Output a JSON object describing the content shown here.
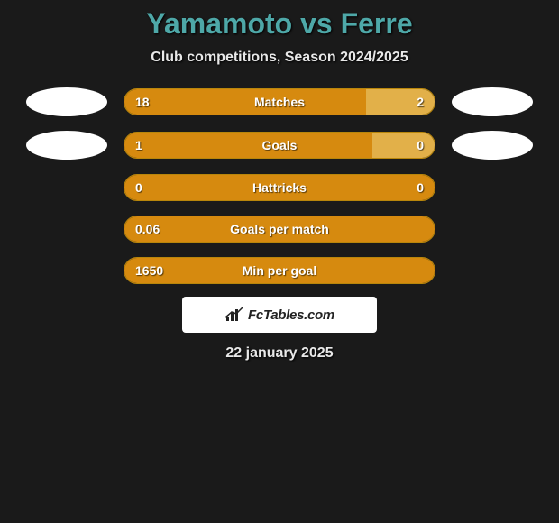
{
  "header": {
    "title": "Yamamoto vs Ferre",
    "subtitle": "Club competitions, Season 2024/2025"
  },
  "stats": [
    {
      "label": "Matches",
      "left_value": "18",
      "right_value": "2",
      "left_pct": 78,
      "right_pct": 22,
      "left_color": "#d68a0f",
      "right_color": "#e2b049",
      "show_avatars": true
    },
    {
      "label": "Goals",
      "left_value": "1",
      "right_value": "0",
      "left_pct": 80,
      "right_pct": 20,
      "left_color": "#d68a0f",
      "right_color": "#e2b049",
      "show_avatars": true
    },
    {
      "label": "Hattricks",
      "left_value": "0",
      "right_value": "0",
      "left_pct": 100,
      "right_pct": 0,
      "left_color": "#d68a0f",
      "right_color": "#e2b049",
      "show_avatars": false
    },
    {
      "label": "Goals per match",
      "left_value": "0.06",
      "right_value": "",
      "left_pct": 100,
      "right_pct": 0,
      "left_color": "#d68a0f",
      "right_color": "#e2b049",
      "show_avatars": false
    },
    {
      "label": "Min per goal",
      "left_value": "1650",
      "right_value": "",
      "left_pct": 100,
      "right_pct": 0,
      "left_color": "#d68a0f",
      "right_color": "#e2b049",
      "show_avatars": false
    }
  ],
  "brand": {
    "name": "FcTables.com"
  },
  "footer": {
    "date": "22 january 2025"
  },
  "style": {
    "background": "#1a1a1a",
    "title_color": "#4ea8a8",
    "bar_border": "#b8860b",
    "avatar_bg": "#ffffff"
  }
}
